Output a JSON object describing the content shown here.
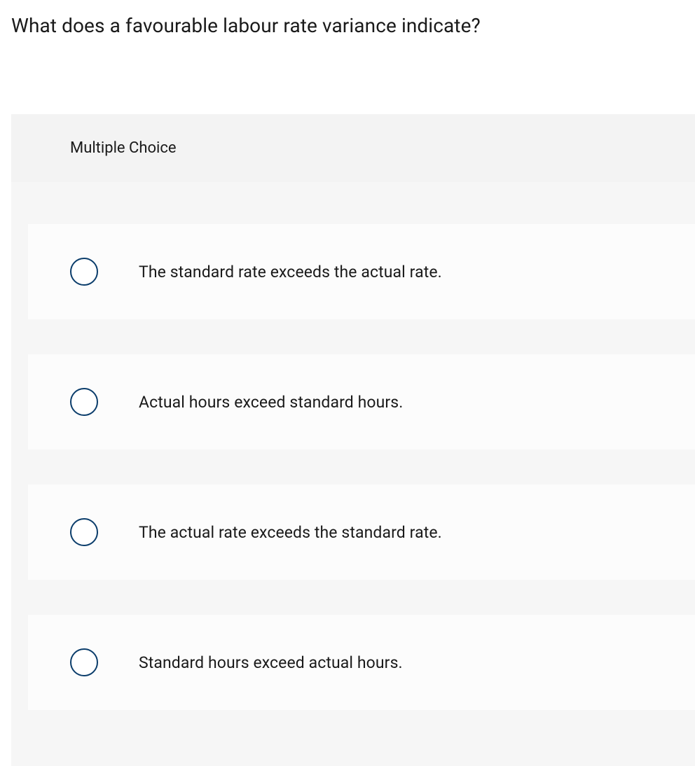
{
  "question": {
    "text": "What does a favourable labour rate variance indicate?",
    "fontsize": 28,
    "color": "#1a1a1a"
  },
  "mc": {
    "header": "Multiple Choice",
    "header_fontsize": 22,
    "panel_bg": "#f3f3f3",
    "body_bg": "#f6f6f6",
    "option_bg": "#fcfcfc",
    "radio_border": "#0b3d6b",
    "options": [
      {
        "label": "The standard rate exceeds the actual rate."
      },
      {
        "label": "Actual hours exceed standard hours."
      },
      {
        "label": "The actual rate exceeds the standard rate."
      },
      {
        "label": "Standard hours exceed actual hours."
      }
    ]
  }
}
